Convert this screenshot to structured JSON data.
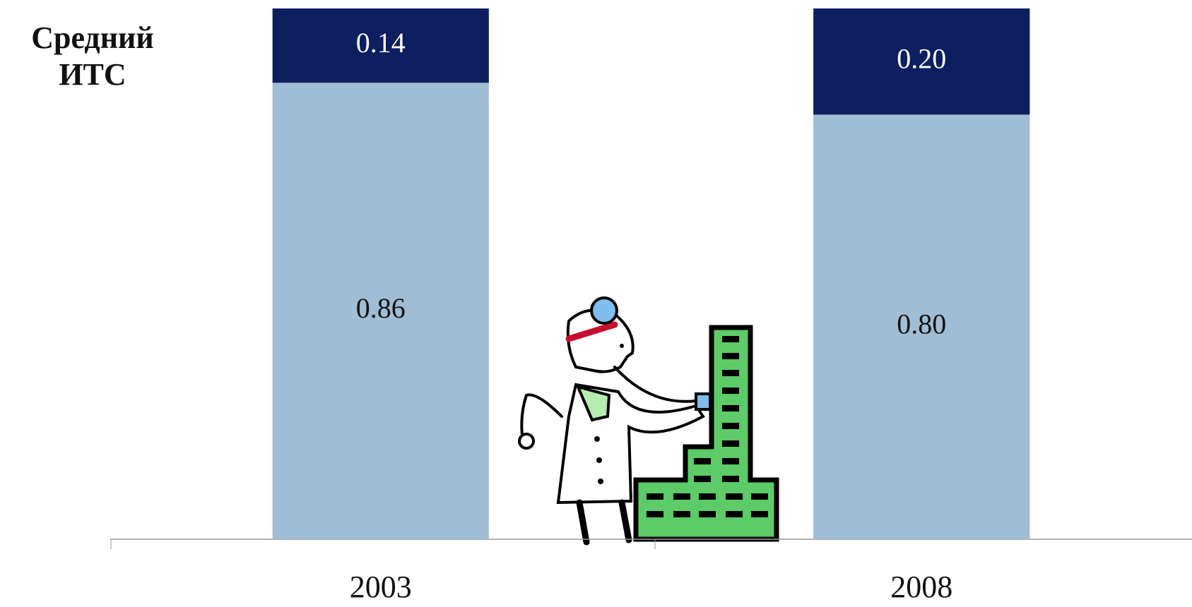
{
  "chart_data": {
    "type": "stacked-bar",
    "title": "Средний ИТС",
    "categories": [
      "2003",
      "2008"
    ],
    "series": [
      {
        "color": "#9fbdd4",
        "values": [
          0.86,
          0.8
        ],
        "value_labels": [
          "0.86",
          "0.80"
        ],
        "label_color": "#111111"
      },
      {
        "color": "#0d1f5e",
        "values": [
          0.14,
          0.2
        ],
        "value_labels": [
          "0.14",
          "0.20"
        ],
        "label_color": "#ffffff"
      }
    ],
    "ylim": [
      0,
      1
    ]
  }
}
